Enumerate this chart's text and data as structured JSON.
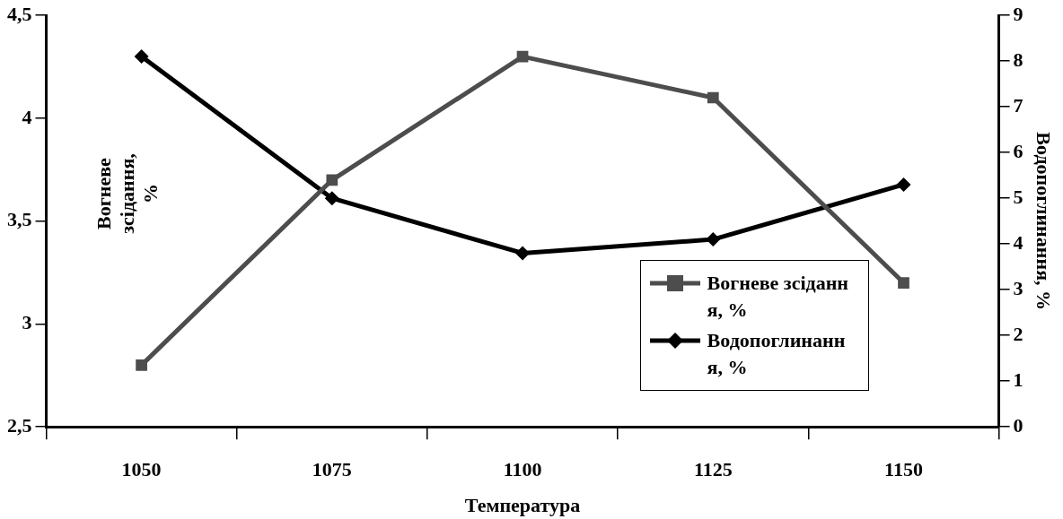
{
  "chart_data": {
    "type": "line",
    "xlabel": "Температура",
    "ylabel": "Вогневе зсідання, %",
    "y2label": "Водопоглинання, %",
    "categories": [
      "1050",
      "1075",
      "1100",
      "1125",
      "1150"
    ],
    "series": [
      {
        "name": "Вогневе зсідання, %",
        "color": "#4d4d4d",
        "marker": "square",
        "values": [
          2.8,
          3.7,
          4.3,
          4.1,
          3.2
        ]
      },
      {
        "name": "Водопоглинання, %",
        "color": "#000000",
        "marker": "diamond",
        "axis": "y2",
        "values": [
          8.1,
          5.0,
          3.8,
          4.1,
          5.3
        ]
      }
    ],
    "ylim": [
      2.5,
      4.5
    ],
    "yticks": [
      {
        "value": 2.5,
        "label": "2,5"
      },
      3,
      {
        "value": 3.5,
        "label": "3,5"
      },
      4,
      {
        "value": 4.5,
        "label": "4,5"
      }
    ],
    "y2lim": [
      0,
      9
    ],
    "y2ticks": [
      0,
      1,
      2,
      3,
      4,
      5,
      6,
      7,
      8,
      9
    ],
    "grid": false,
    "legend": "bottom right",
    "line_style": "solid"
  }
}
